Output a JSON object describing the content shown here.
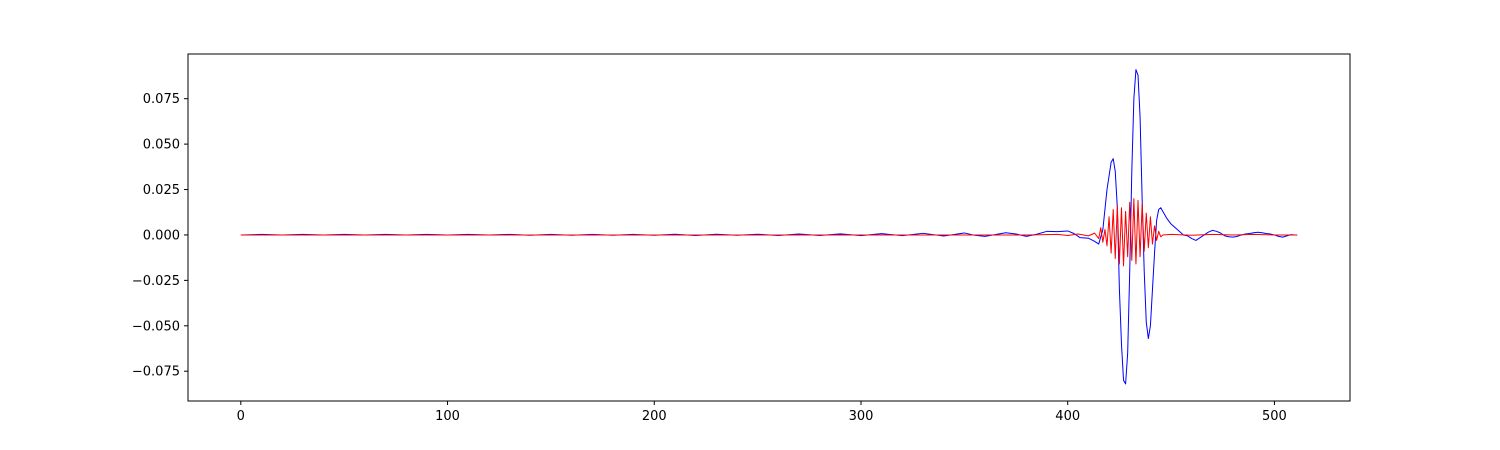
{
  "chart_data": {
    "type": "line",
    "title": "",
    "xlabel": "",
    "ylabel": "",
    "xlim": [
      -25.55,
      536.55
    ],
    "ylim": [
      -0.0914,
      0.0996
    ],
    "grid": false,
    "legend": "none",
    "x_ticks": [
      {
        "value": 0,
        "label": "0"
      },
      {
        "value": 100,
        "label": "100"
      },
      {
        "value": 200,
        "label": "200"
      },
      {
        "value": 300,
        "label": "300"
      },
      {
        "value": 400,
        "label": "400"
      },
      {
        "value": 500,
        "label": "500"
      }
    ],
    "y_ticks": [
      {
        "value": 0.075,
        "label": "0.075"
      },
      {
        "value": 0.05,
        "label": "0.050"
      },
      {
        "value": 0.025,
        "label": "0.025"
      },
      {
        "value": 0.0,
        "label": "0.000"
      },
      {
        "value": -0.025,
        "label": "−0.025"
      },
      {
        "value": -0.05,
        "label": "−0.050"
      },
      {
        "value": -0.075,
        "label": "−0.075"
      }
    ],
    "series": [
      {
        "color": "#0000ff",
        "points": [
          [
            0,
            0.0
          ],
          [
            10,
            0.0003
          ],
          [
            20,
            0.0
          ],
          [
            30,
            0.0003
          ],
          [
            40,
            0.0
          ],
          [
            50,
            0.0003
          ],
          [
            60,
            0.0
          ],
          [
            70,
            0.0003
          ],
          [
            80,
            0.0
          ],
          [
            90,
            0.0003
          ],
          [
            100,
            0.0
          ],
          [
            110,
            0.0003
          ],
          [
            120,
            0.0
          ],
          [
            130,
            0.0003
          ],
          [
            140,
            -0.0002
          ],
          [
            150,
            0.0003
          ],
          [
            160,
            -0.0002
          ],
          [
            170,
            0.0003
          ],
          [
            180,
            -0.0002
          ],
          [
            190,
            0.0003
          ],
          [
            200,
            -0.0002
          ],
          [
            210,
            0.0004
          ],
          [
            220,
            -0.0003
          ],
          [
            230,
            0.0004
          ],
          [
            240,
            -0.0002
          ],
          [
            250,
            0.0004
          ],
          [
            260,
            -0.0003
          ],
          [
            270,
            0.0005
          ],
          [
            280,
            -0.0003
          ],
          [
            290,
            0.0006
          ],
          [
            300,
            -0.0004
          ],
          [
            310,
            0.0007
          ],
          [
            320,
            -0.0004
          ],
          [
            330,
            0.0009
          ],
          [
            340,
            -0.0006
          ],
          [
            350,
            0.0011
          ],
          [
            355,
            -0.0002
          ],
          [
            360,
            -0.0008
          ],
          [
            370,
            0.0012
          ],
          [
            375,
            0.0005
          ],
          [
            380,
            -0.0008
          ],
          [
            385,
            0.0004
          ],
          [
            390,
            0.002
          ],
          [
            395,
            0.0018
          ],
          [
            400,
            0.0022
          ],
          [
            403,
            0.0008
          ],
          [
            406,
            -0.0015
          ],
          [
            410,
            -0.0018
          ],
          [
            413,
            -0.0035
          ],
          [
            415,
            -0.005
          ],
          [
            417,
            0.003
          ],
          [
            419,
            0.025
          ],
          [
            421,
            0.04
          ],
          [
            422,
            0.042
          ],
          [
            423,
            0.035
          ],
          [
            424,
            0.015
          ],
          [
            425,
            -0.03
          ],
          [
            426,
            -0.06
          ],
          [
            427,
            -0.08
          ],
          [
            428,
            -0.082
          ],
          [
            429,
            -0.065
          ],
          [
            430,
            -0.02
          ],
          [
            431,
            0.035
          ],
          [
            432,
            0.075
          ],
          [
            433,
            0.091
          ],
          [
            434,
            0.088
          ],
          [
            435,
            0.065
          ],
          [
            436,
            0.02
          ],
          [
            437,
            -0.02
          ],
          [
            438,
            -0.048
          ],
          [
            439,
            -0.057
          ],
          [
            440,
            -0.05
          ],
          [
            441,
            -0.03
          ],
          [
            442,
            -0.01
          ],
          [
            443,
            0.008
          ],
          [
            444,
            0.014
          ],
          [
            445,
            0.015
          ],
          [
            446,
            0.013
          ],
          [
            448,
            0.009
          ],
          [
            450,
            0.006
          ],
          [
            452,
            0.004
          ],
          [
            454,
            0.002
          ],
          [
            456,
            0.0
          ],
          [
            458,
            -0.0005
          ],
          [
            460,
            -0.002
          ],
          [
            462,
            -0.003
          ],
          [
            464,
            -0.0015
          ],
          [
            466,
            0.0
          ],
          [
            468,
            0.0015
          ],
          [
            470,
            0.0025
          ],
          [
            472,
            0.002
          ],
          [
            474,
            0.001
          ],
          [
            476,
            -0.0005
          ],
          [
            478,
            -0.001
          ],
          [
            480,
            -0.0012
          ],
          [
            482,
            -0.0008
          ],
          [
            484,
            0.0
          ],
          [
            486,
            0.0005
          ],
          [
            488,
            0.0008
          ],
          [
            490,
            0.0012
          ],
          [
            492,
            0.0015
          ],
          [
            494,
            0.0012
          ],
          [
            496,
            0.0008
          ],
          [
            498,
            0.0005
          ],
          [
            500,
            0.0
          ],
          [
            502,
            -0.0008
          ],
          [
            504,
            -0.0012
          ],
          [
            506,
            -0.0005
          ],
          [
            508,
            0.0002
          ],
          [
            510,
            0.0
          ],
          [
            511,
            -0.0001
          ]
        ]
      },
      {
        "color": "#ff0000",
        "points": [
          [
            0,
            0.0
          ],
          [
            300,
            0.0
          ],
          [
            380,
            0.0
          ],
          [
            395,
            0.0003
          ],
          [
            400,
            -0.0003
          ],
          [
            405,
            0.0005
          ],
          [
            410,
            -0.0005
          ],
          [
            413,
            0.001
          ],
          [
            415,
            -0.002
          ],
          [
            416,
            0.004
          ],
          [
            417,
            -0.004
          ],
          [
            418,
            0.003
          ],
          [
            419,
            -0.006
          ],
          [
            420,
            0.01
          ],
          [
            421,
            -0.01
          ],
          [
            422,
            0.014
          ],
          [
            423,
            -0.013
          ],
          [
            424,
            0.016
          ],
          [
            425,
            -0.016
          ],
          [
            426,
            0.015
          ],
          [
            427,
            -0.017
          ],
          [
            428,
            0.013
          ],
          [
            429,
            -0.012
          ],
          [
            430,
            0.018
          ],
          [
            431,
            -0.014
          ],
          [
            432,
            0.02
          ],
          [
            433,
            -0.016
          ],
          [
            434,
            0.019
          ],
          [
            435,
            -0.012
          ],
          [
            436,
            0.017
          ],
          [
            437,
            -0.009
          ],
          [
            438,
            0.012
          ],
          [
            439,
            -0.007
          ],
          [
            440,
            0.01
          ],
          [
            441,
            -0.005
          ],
          [
            442,
            0.005
          ],
          [
            443,
            -0.003
          ],
          [
            444,
            0.002
          ],
          [
            445,
            -0.001
          ],
          [
            446,
            0.0
          ],
          [
            450,
            0.0003
          ],
          [
            460,
            -0.0002
          ],
          [
            470,
            0.0003
          ],
          [
            480,
            0.0
          ],
          [
            490,
            0.0003
          ],
          [
            500,
            0.0
          ],
          [
            511,
            0.0
          ]
        ]
      }
    ]
  }
}
